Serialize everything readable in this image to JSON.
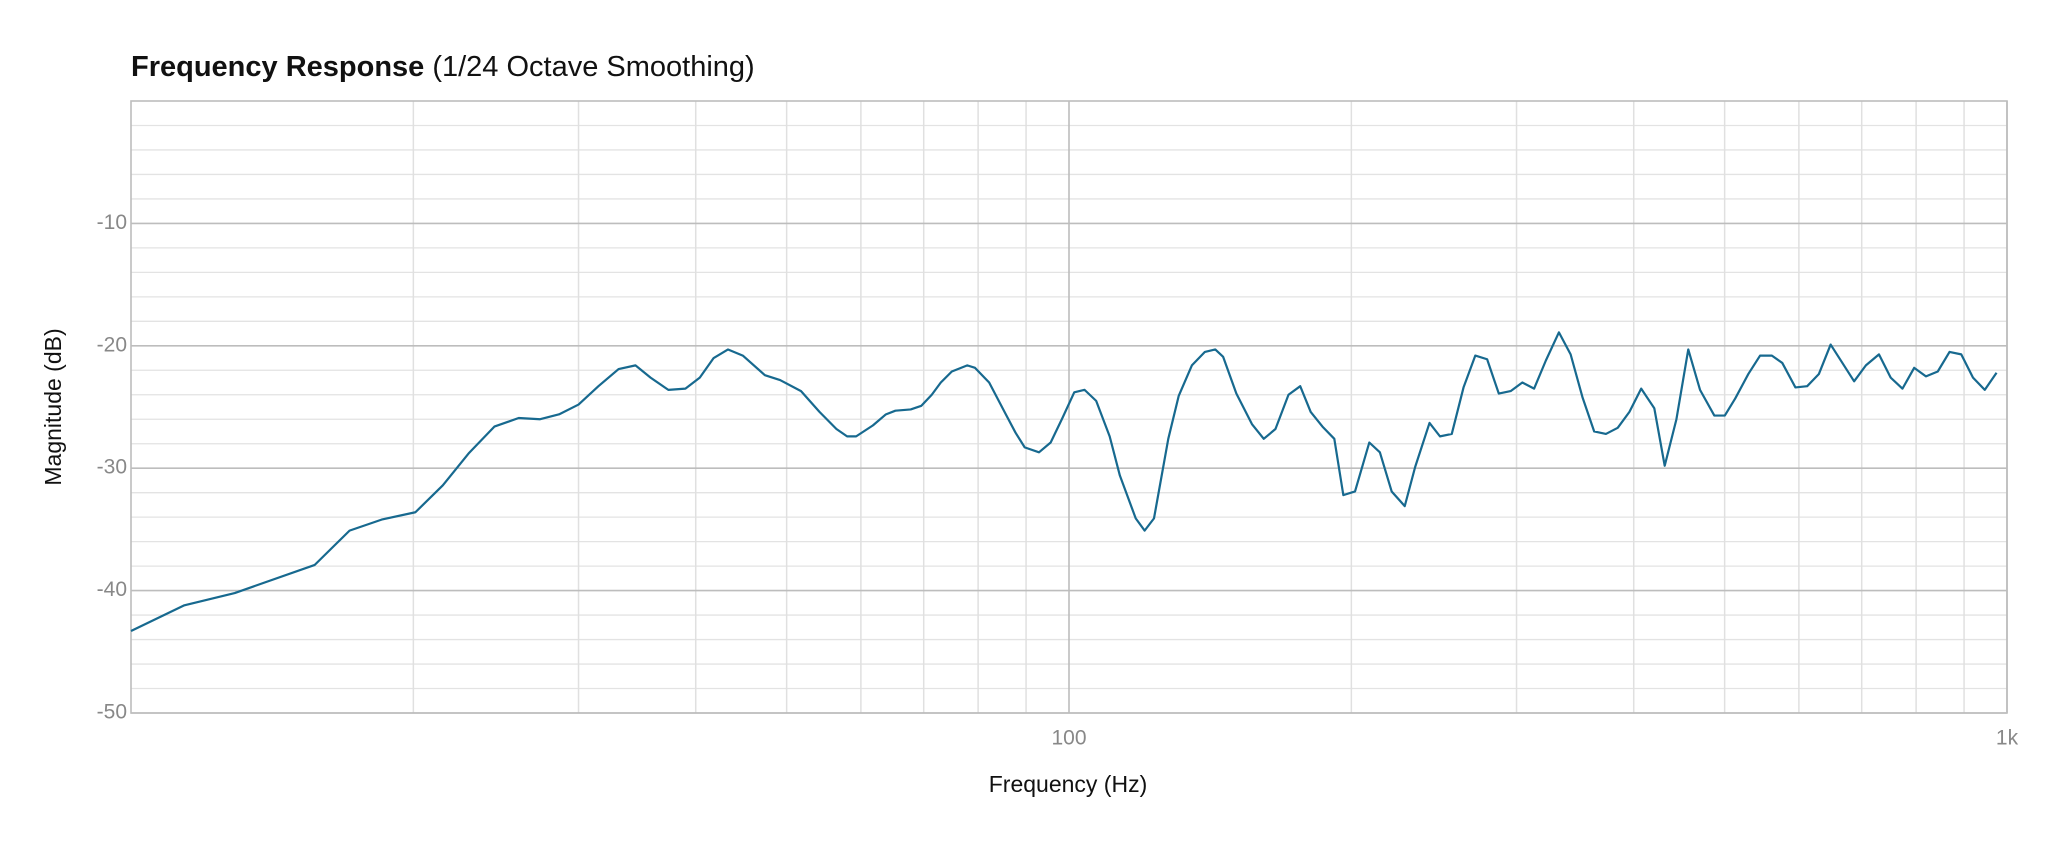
{
  "chart_data": {
    "type": "line",
    "title": "Frequency Response",
    "subtitle": "(1/24 Octave Smoothing)",
    "xlabel": "Frequency (Hz)",
    "ylabel": "Magnitude (dB)",
    "xscale": "log",
    "xlim": [
      10,
      1000
    ],
    "ylim": [
      -50,
      0
    ],
    "xticks": [
      100,
      {
        "value": 1000,
        "label": "1k"
      }
    ],
    "yticks": [
      -10,
      -20,
      -30,
      -40,
      -50
    ],
    "xminor": [
      20,
      30,
      40,
      50,
      60,
      70,
      80,
      90,
      200,
      300,
      400,
      500,
      600,
      700,
      800,
      900
    ],
    "yminor": [
      -2,
      -4,
      -6,
      -8,
      -12,
      -14,
      -16,
      -18,
      -22,
      -24,
      -26,
      -28,
      -32,
      -34,
      -36,
      -38,
      -42,
      -44,
      -46,
      -48
    ],
    "grid": true,
    "x": [
      10,
      11.4,
      12.9,
      15.7,
      17.1,
      18.5,
      20.1,
      21.5,
      22.9,
      24.4,
      25.9,
      27.3,
      28.6,
      30.0,
      31.5,
      33.1,
      34.5,
      35.8,
      37.4,
      39.0,
      40.4,
      41.8,
      43.3,
      44.9,
      47.4,
      49.2,
      51.8,
      54.2,
      56.5,
      58.0,
      59.3,
      61.8,
      63.8,
      65.3,
      67.8,
      69.6,
      71.4,
      73.0,
      75.0,
      77.9,
      79.4,
      82.2,
      85.5,
      87.7,
      89.7,
      92.9,
      95.6,
      98.4,
      101.3,
      103.9,
      106.9,
      110.5,
      113.3,
      117.8,
      120.4,
      123.2,
      127.6,
      130.9,
      135.2,
      139.6,
      143.2,
      146.0,
      150.8,
      156.7,
      161.3,
      166.0,
      171.4,
      176.4,
      181.0,
      186.3,
      191.8,
      196.1,
      201.8,
      209.0,
      214.5,
      220.8,
      228.0,
      233.9,
      242.3,
      248.6,
      255.9,
      263.4,
      271.1,
      279.1,
      287.2,
      295.7,
      304.3,
      313.2,
      322.4,
      332.9,
      342.6,
      352.7,
      363.0,
      373.6,
      384.6,
      395.8,
      407.4,
      420.7,
      431.6,
      444.2,
      457.3,
      470.7,
      487.5,
      500.2,
      513.2,
      530.0,
      545.5,
      561.5,
      576.0,
      594.9,
      612.3,
      630.2,
      648.6,
      667.6,
      687.1,
      707.2,
      730.3,
      751.6,
      773.7,
      796.3,
      819.6,
      843.7,
      868.4,
      893.8,
      919.9,
      946.9,
      974.7
    ],
    "series": [
      {
        "color": "#17698f",
        "values": [
          -43.3,
          -41.2,
          -40.2,
          -37.9,
          -35.1,
          -34.2,
          -33.6,
          -31.4,
          -28.8,
          -26.6,
          -25.9,
          -26.0,
          -25.6,
          -24.8,
          -23.3,
          -21.9,
          -21.6,
          -22.6,
          -23.6,
          -23.5,
          -22.6,
          -21.0,
          -20.3,
          -20.8,
          -22.4,
          -22.8,
          -23.7,
          -25.4,
          -26.8,
          -27.4,
          -27.4,
          -26.5,
          -25.6,
          -25.3,
          -25.2,
          -24.9,
          -24.0,
          -23.0,
          -22.1,
          -21.6,
          -21.8,
          -23.0,
          -25.5,
          -27.1,
          -28.3,
          -28.7,
          -27.9,
          -25.9,
          -23.8,
          -23.6,
          -24.5,
          -27.4,
          -30.6,
          -34.1,
          -35.1,
          -34.1,
          -27.6,
          -24.1,
          -21.6,
          -20.5,
          -20.3,
          -20.9,
          -23.9,
          -26.4,
          -27.6,
          -26.8,
          -24.0,
          -23.3,
          -25.4,
          -26.6,
          -27.6,
          -32.2,
          -31.9,
          -27.9,
          -28.7,
          -31.9,
          -33.1,
          -29.9,
          -26.3,
          -27.4,
          -27.2,
          -23.4,
          -20.8,
          -21.1,
          -23.9,
          -23.7,
          -23.0,
          -23.5,
          -21.2,
          -18.9,
          -20.7,
          -24.2,
          -27.0,
          -27.2,
          -26.7,
          -25.4,
          -23.5,
          -25.1,
          -29.8,
          -26.0,
          -20.3,
          -23.6,
          -25.7,
          -25.7,
          -24.3,
          -22.3,
          -20.8,
          -20.8,
          -21.4,
          -23.4,
          -23.3,
          -22.3,
          -19.9,
          -21.4,
          -22.9,
          -21.6,
          -20.7,
          -22.6,
          -23.5,
          -21.8,
          -22.5,
          -22.1,
          -20.5,
          -20.7,
          -22.6,
          -23.6,
          -22.2
        ]
      }
    ]
  }
}
